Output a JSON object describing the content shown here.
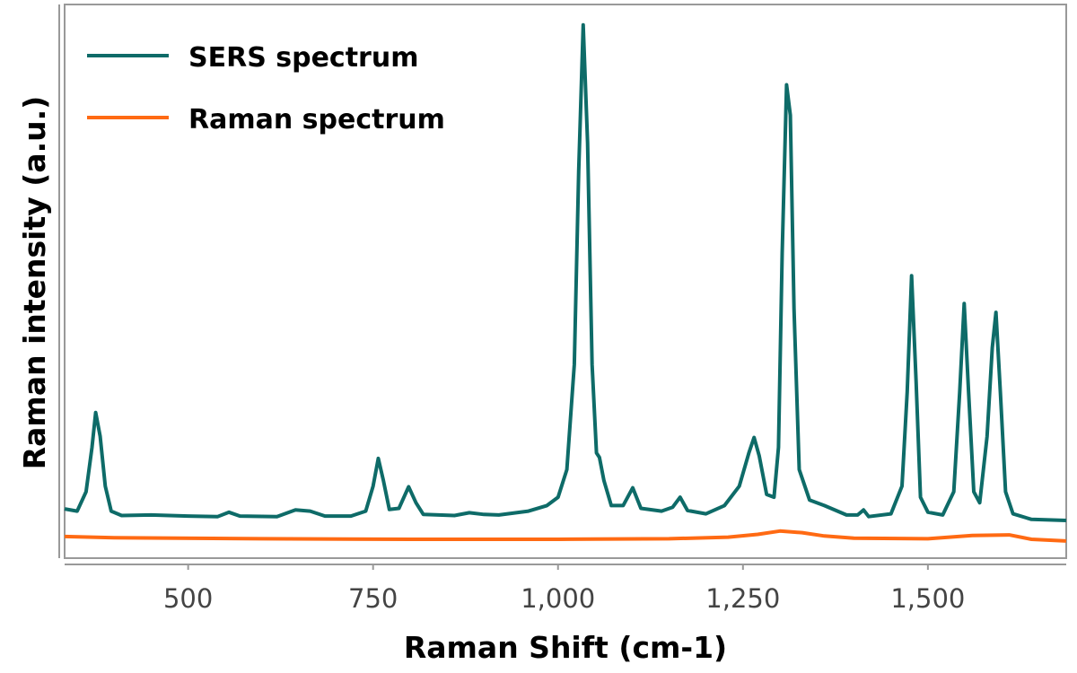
{
  "chart_data": {
    "type": "line",
    "xlabel": "Raman Shift (cm-1)",
    "ylabel": "Raman intensity (a.u.)",
    "xlim": [
      333,
      1687
    ],
    "ylim": [
      0,
      100
    ],
    "xticks": [
      500,
      750,
      1000,
      1250,
      1500
    ],
    "xtick_labels": [
      "500",
      "750",
      "1,000",
      "1,250",
      "1,500"
    ],
    "yticks": [],
    "grid": false,
    "legend_position": "top-left",
    "series": [
      {
        "name": "SERS spectrum",
        "color": "#0e6b68",
        "points": [
          [
            333,
            8.9
          ],
          [
            350,
            8.5
          ],
          [
            362,
            12
          ],
          [
            370,
            20
          ],
          [
            375,
            26.3
          ],
          [
            381,
            22
          ],
          [
            388,
            13
          ],
          [
            396,
            8.5
          ],
          [
            410,
            7.7
          ],
          [
            450,
            7.8
          ],
          [
            500,
            7.6
          ],
          [
            540,
            7.5
          ],
          [
            555,
            8.3
          ],
          [
            570,
            7.6
          ],
          [
            620,
            7.5
          ],
          [
            645,
            8.7
          ],
          [
            665,
            8.5
          ],
          [
            685,
            7.6
          ],
          [
            720,
            7.6
          ],
          [
            740,
            8.5
          ],
          [
            750,
            13
          ],
          [
            757,
            18
          ],
          [
            764,
            14
          ],
          [
            772,
            8.8
          ],
          [
            785,
            9
          ],
          [
            798,
            12.9
          ],
          [
            808,
            10
          ],
          [
            818,
            7.9
          ],
          [
            860,
            7.7
          ],
          [
            880,
            8.2
          ],
          [
            900,
            7.9
          ],
          [
            920,
            7.8
          ],
          [
            960,
            8.5
          ],
          [
            985,
            9.5
          ],
          [
            1000,
            11
          ],
          [
            1012,
            16
          ],
          [
            1022,
            35
          ],
          [
            1028,
            70
          ],
          [
            1034,
            96.3
          ],
          [
            1040,
            75
          ],
          [
            1046,
            35
          ],
          [
            1052,
            19
          ],
          [
            1056,
            18.2
          ],
          [
            1062,
            14
          ],
          [
            1072,
            9.5
          ],
          [
            1088,
            9.5
          ],
          [
            1101,
            12.7
          ],
          [
            1112,
            9
          ],
          [
            1140,
            8.5
          ],
          [
            1155,
            9.2
          ],
          [
            1165,
            11
          ],
          [
            1175,
            8.6
          ],
          [
            1200,
            8
          ],
          [
            1225,
            9.5
          ],
          [
            1245,
            13
          ],
          [
            1258,
            19
          ],
          [
            1265,
            21.8
          ],
          [
            1272,
            18.5
          ],
          [
            1282,
            11.5
          ],
          [
            1292,
            11
          ],
          [
            1298,
            20
          ],
          [
            1303,
            55
          ],
          [
            1309,
            85.5
          ],
          [
            1314,
            80
          ],
          [
            1319,
            45
          ],
          [
            1326,
            16
          ],
          [
            1340,
            10.5
          ],
          [
            1360,
            9.5
          ],
          [
            1390,
            7.8
          ],
          [
            1405,
            7.8
          ],
          [
            1413,
            8.7
          ],
          [
            1420,
            7.5
          ],
          [
            1450,
            8
          ],
          [
            1465,
            13
          ],
          [
            1472,
            30
          ],
          [
            1478,
            51
          ],
          [
            1484,
            32
          ],
          [
            1490,
            11
          ],
          [
            1500,
            8.3
          ],
          [
            1520,
            7.8
          ],
          [
            1535,
            12
          ],
          [
            1543,
            30
          ],
          [
            1549,
            46
          ],
          [
            1555,
            30
          ],
          [
            1562,
            12
          ],
          [
            1570,
            10
          ],
          [
            1580,
            22
          ],
          [
            1587,
            38
          ],
          [
            1592,
            44.4
          ],
          [
            1598,
            30
          ],
          [
            1605,
            12
          ],
          [
            1615,
            8
          ],
          [
            1640,
            7
          ],
          [
            1687,
            6.8
          ]
        ]
      },
      {
        "name": "Raman spectrum",
        "color": "#ff6a13",
        "points": [
          [
            333,
            3.9
          ],
          [
            400,
            3.7
          ],
          [
            600,
            3.5
          ],
          [
            800,
            3.4
          ],
          [
            1000,
            3.4
          ],
          [
            1150,
            3.5
          ],
          [
            1230,
            3.8
          ],
          [
            1270,
            4.3
          ],
          [
            1300,
            4.9
          ],
          [
            1330,
            4.6
          ],
          [
            1360,
            4.0
          ],
          [
            1400,
            3.6
          ],
          [
            1500,
            3.5
          ],
          [
            1560,
            4.1
          ],
          [
            1610,
            4.2
          ],
          [
            1640,
            3.4
          ],
          [
            1687,
            3.1
          ]
        ]
      }
    ]
  }
}
